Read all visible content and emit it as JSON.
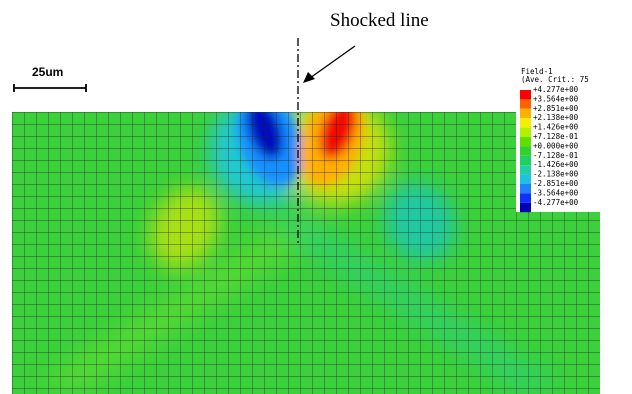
{
  "annotation": "Shocked line",
  "scale_bar": "25um",
  "legend": {
    "title": "Field-1",
    "subtitle": "(Ave. Crit.: 75",
    "labels": [
      "+4.277e+00",
      "+3.564e+00",
      "+2.851e+00",
      "+2.138e+00",
      "+1.426e+00",
      "+7.128e-01",
      "+0.000e+00",
      "-7.128e-01",
      "-1.426e+00",
      "-2.138e+00",
      "-2.851e+00",
      "-3.564e+00",
      "-4.277e+00"
    ],
    "colors": [
      "#ff0000",
      "#ff6000",
      "#ffb000",
      "#f0f000",
      "#b0f000",
      "#60e000",
      "#30d030",
      "#20d060",
      "#20d0a0",
      "#20c0e0",
      "#2080ff",
      "#1030ff",
      "#0000b0"
    ]
  }
}
